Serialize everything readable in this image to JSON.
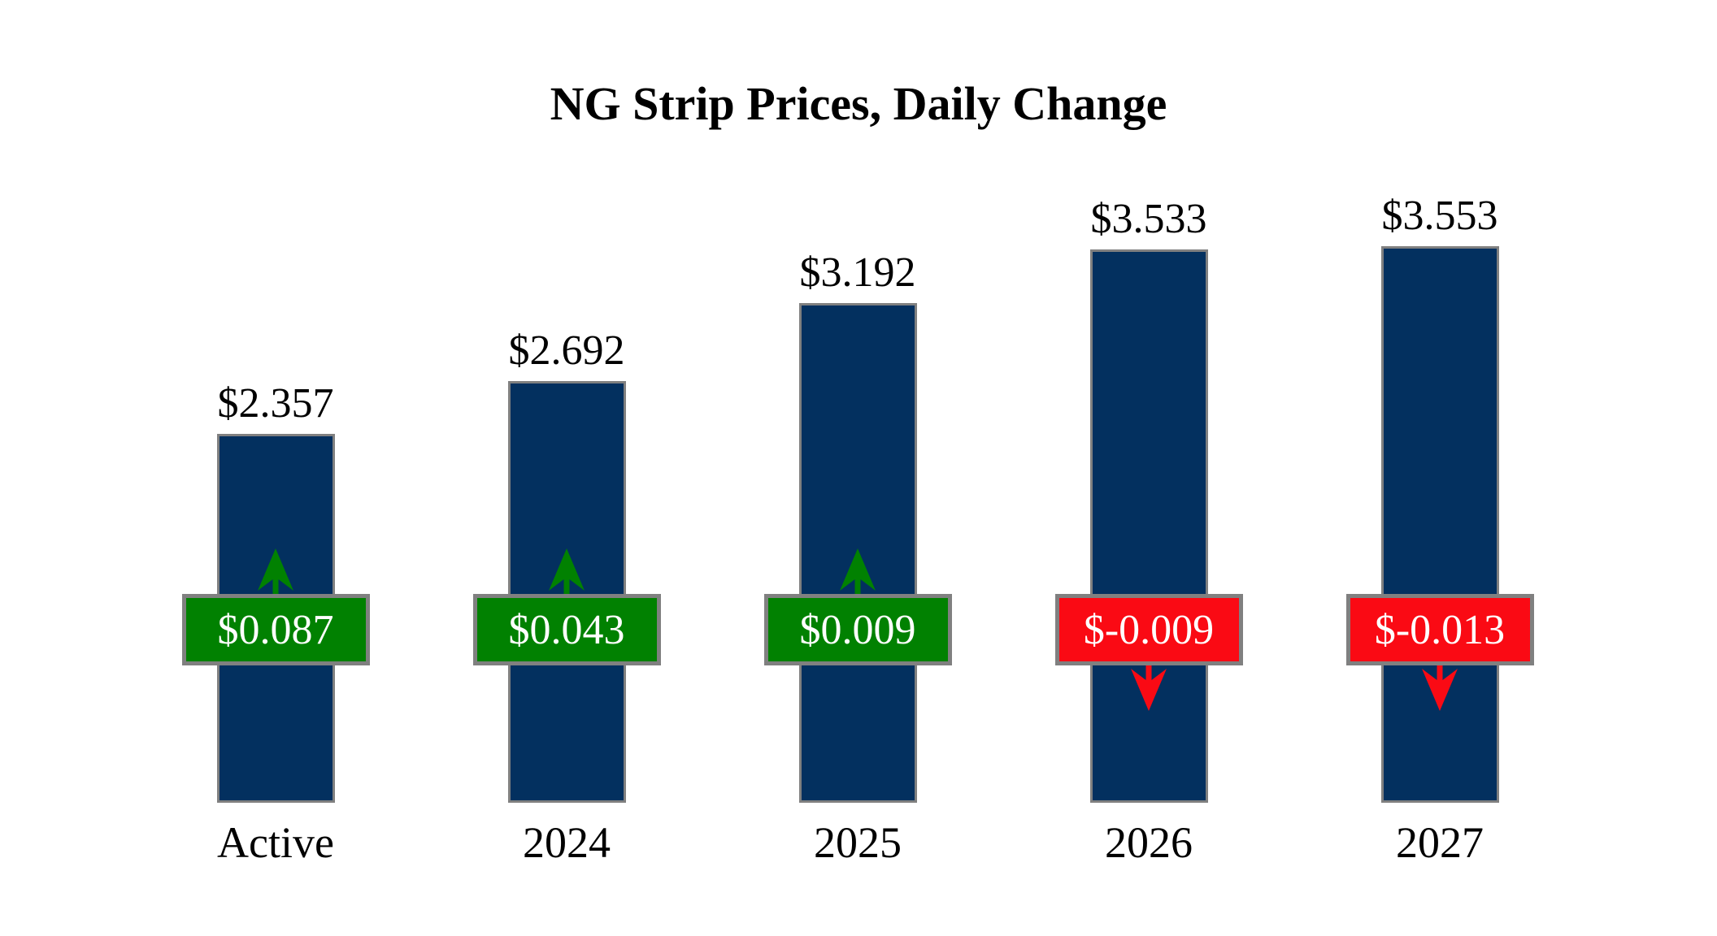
{
  "chart_data": {
    "type": "bar",
    "title": "NG Strip Prices, Daily Change",
    "categories": [
      "Active",
      "2024",
      "2025",
      "2026",
      "2027"
    ],
    "values": [
      2.357,
      2.692,
      3.192,
      3.533,
      3.553
    ],
    "value_labels": [
      "$2.357",
      "$2.692",
      "$3.192",
      "$3.533",
      "$3.553"
    ],
    "changes": [
      0.087,
      0.043,
      0.009,
      -0.009,
      -0.013
    ],
    "change_labels": [
      "$0.087",
      "$0.043",
      "$0.009",
      "$-0.009",
      "$-0.013"
    ],
    "xlabel": "",
    "ylabel": "",
    "ylim": [
      0,
      3.8
    ],
    "grid": false,
    "legend": "none",
    "axis_lines": false,
    "colors": {
      "bar": "#03305F",
      "positive": "#018101",
      "negative": "#FA0A14",
      "border": "#808080",
      "badge_text": "#FFFFFF",
      "label_text": "#000000",
      "background": "#FFFFFF"
    }
  }
}
